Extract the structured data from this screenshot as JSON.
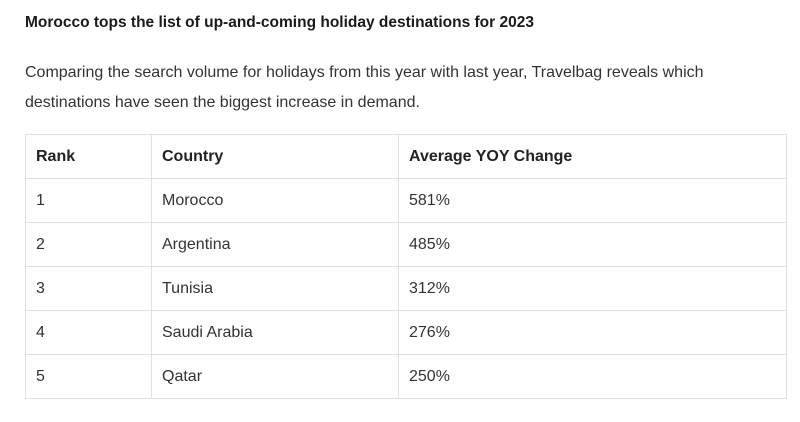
{
  "header": {
    "title": "Morocco tops the list of up-and-coming holiday destinations for 2023"
  },
  "intro": "Comparing the search volume for holidays from this year with last year, Travelbag reveals which destinations have seen the biggest increase in demand.",
  "table": {
    "columns": [
      "Rank",
      "Country",
      "Average YOY Change"
    ],
    "rows": [
      [
        "1",
        "Morocco",
        "581%"
      ],
      [
        "2",
        "Argentina",
        "485%"
      ],
      [
        "3",
        "Tunisia",
        "312%"
      ],
      [
        "4",
        "Saudi Arabia",
        "276%"
      ],
      [
        "5",
        "Qatar",
        "250%"
      ]
    ]
  }
}
